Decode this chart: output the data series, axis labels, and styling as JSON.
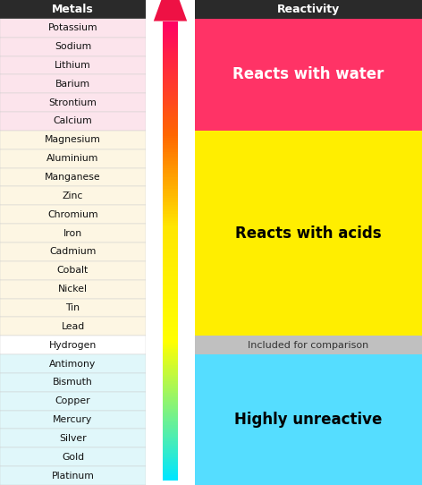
{
  "metals": [
    "Potassium",
    "Sodium",
    "Lithium",
    "Barium",
    "Strontium",
    "Calcium",
    "Magnesium",
    "Aluminium",
    "Manganese",
    "Zinc",
    "Chromium",
    "Iron",
    "Cadmium",
    "Cobalt",
    "Nickel",
    "Tin",
    "Lead",
    "Hydrogen",
    "Antimony",
    "Bismuth",
    "Copper",
    "Mercury",
    "Silver",
    "Gold",
    "Platinum"
  ],
  "metal_colors": [
    "#fce4ec",
    "#fce4ec",
    "#fce4ec",
    "#fce4ec",
    "#fce4ec",
    "#fce4ec",
    "#fdf6e3",
    "#fdf6e3",
    "#fdf6e3",
    "#fdf6e3",
    "#fdf6e3",
    "#fdf6e3",
    "#fdf6e3",
    "#fdf6e3",
    "#fdf6e3",
    "#fdf6e3",
    "#fdf6e3",
    "#ffffff",
    "#e0f7fa",
    "#e0f7fa",
    "#e0f7fa",
    "#e0f7fa",
    "#e0f7fa",
    "#e0f7fa",
    "#e0f7fa"
  ],
  "header_bg": "#2a2a2a",
  "header_text_color": "#ffffff",
  "metals_header": "Metals",
  "reactivity_header": "Reactivity",
  "zones": [
    {
      "label": "Reacts with water",
      "color": "#ff3366",
      "text_color": "#ffffff",
      "start": 0,
      "end": 6
    },
    {
      "label": "Reacts with acids",
      "color": "#ffee00",
      "text_color": "#000000",
      "start": 6,
      "end": 17
    },
    {
      "label": "Included for comparison",
      "color": "#c0c0c0",
      "text_color": "#333333",
      "start": 17,
      "end": 18
    },
    {
      "label": "Highly unreactive",
      "color": "#55ddff",
      "text_color": "#000000",
      "start": 18,
      "end": 25
    }
  ],
  "border_color": "#cccccc",
  "fig_width": 4.72,
  "fig_height": 5.42,
  "dpi": 100
}
